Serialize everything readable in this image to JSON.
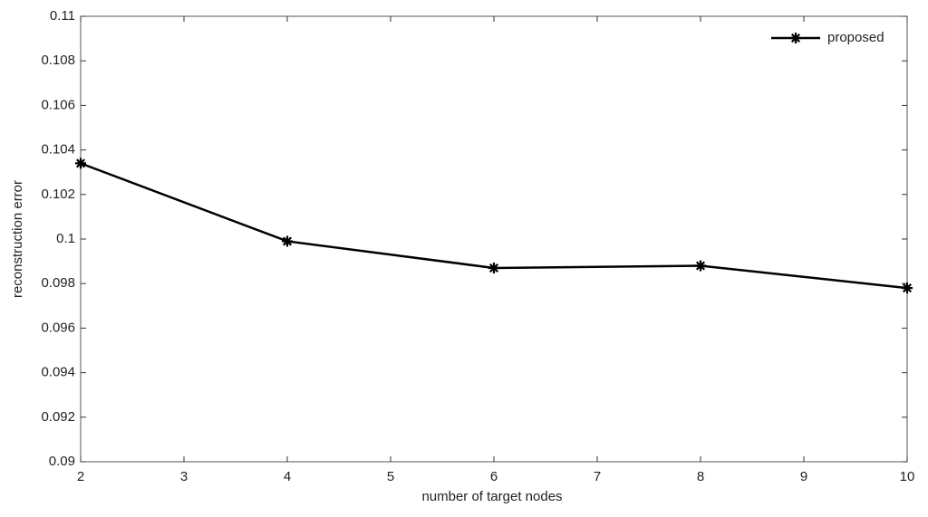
{
  "chart_data": {
    "type": "line",
    "xlabel": "number of target nodes",
    "ylabel": "reconstruction error",
    "x": [
      2,
      4,
      6,
      8,
      10
    ],
    "series": [
      {
        "name": "proposed",
        "color": "#000000",
        "values": [
          0.1034,
          0.0999,
          0.0987,
          0.0988,
          0.0978
        ]
      }
    ],
    "xlim": [
      2,
      10
    ],
    "xticks": [
      2,
      3,
      4,
      5,
      6,
      7,
      8,
      9,
      10
    ],
    "ylim": [
      0.09,
      0.11
    ],
    "yticks": [
      0.09,
      0.092,
      0.094,
      0.096,
      0.098,
      0.1,
      0.102,
      0.104,
      0.106,
      0.108,
      0.11
    ],
    "grid": false,
    "legend": "upper right"
  }
}
